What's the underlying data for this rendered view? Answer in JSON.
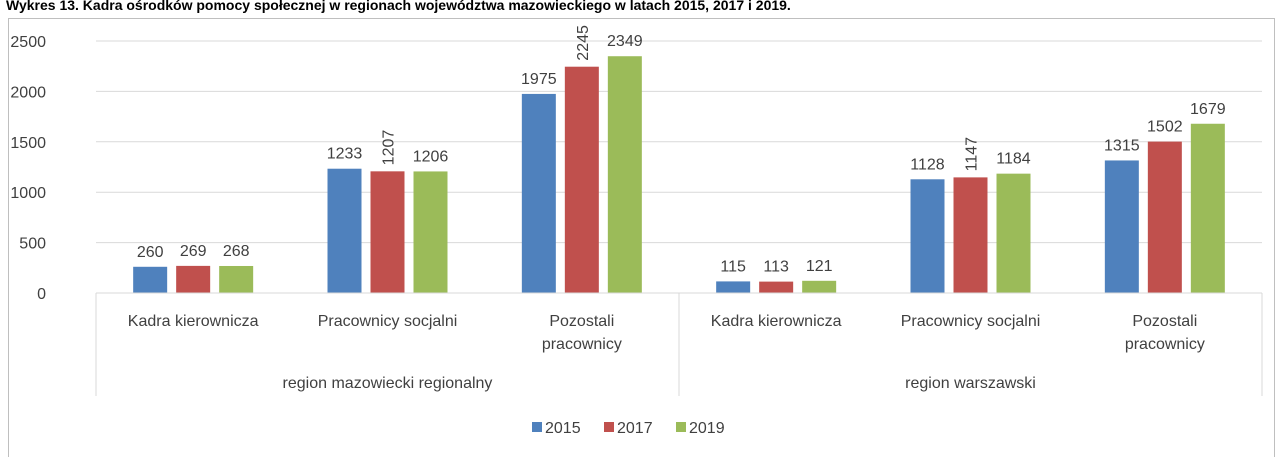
{
  "chart_data": {
    "type": "bar",
    "title": "Wykres 13. Kadra ośrodków pomocy społecznej w regionach województwa mazowieckiego w latach 2015, 2017 i 2019.",
    "groups": [
      {
        "name": "region mazowiecki regionalny",
        "categories": [
          "Kadra kierownicza",
          "Pracownicy socjalni",
          "Pozostali pracownicy"
        ]
      },
      {
        "name": "region warszawski",
        "categories": [
          "Kadra kierownicza",
          "Pracownicy socjalni",
          "Pozostali pracownicy"
        ]
      }
    ],
    "series": [
      {
        "name": "2015",
        "color": "#4f81bd",
        "values": [
          260,
          1233,
          1975,
          115,
          1128,
          1315
        ]
      },
      {
        "name": "2017",
        "color": "#c0504d",
        "values": [
          269,
          1207,
          2245,
          113,
          1147,
          1502
        ]
      },
      {
        "name": "2019",
        "color": "#9bbb59",
        "values": [
          268,
          1206,
          2349,
          121,
          1184,
          1679
        ]
      }
    ],
    "ylim": [
      0,
      2500
    ],
    "yticks": [
      0,
      500,
      1000,
      1500,
      2000,
      2500
    ],
    "grid": true,
    "legend": "bottom"
  }
}
